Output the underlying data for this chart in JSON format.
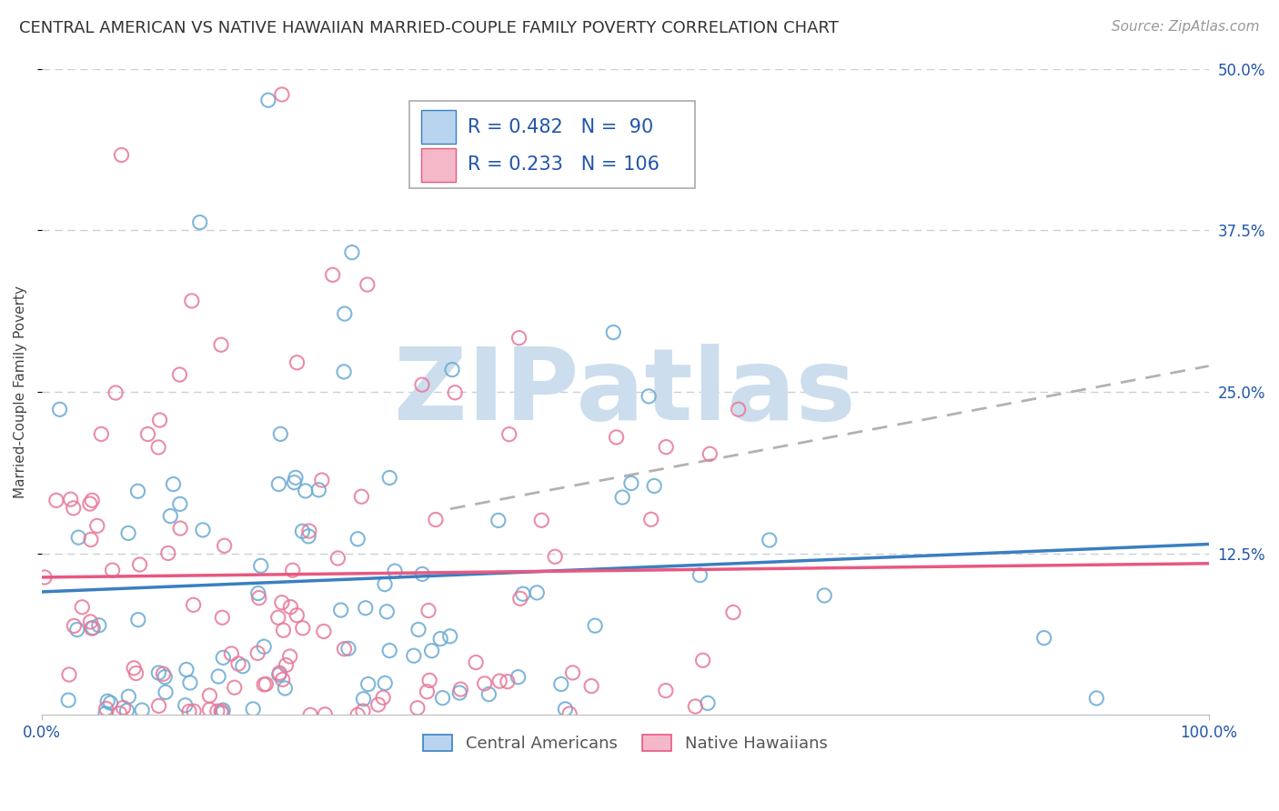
{
  "title": "CENTRAL AMERICAN VS NATIVE HAWAIIAN MARRIED-COUPLE FAMILY POVERTY CORRELATION CHART",
  "source": "Source: ZipAtlas.com",
  "ylabel": "Married-Couple Family Poverty",
  "xmin": 0.0,
  "xmax": 1.0,
  "ymin": 0.0,
  "ymax": 0.5,
  "yticks": [
    0.125,
    0.25,
    0.375,
    0.5
  ],
  "ytick_labels": [
    "12.5%",
    "25.0%",
    "37.5%",
    "50.0%"
  ],
  "xticks": [
    0.0,
    1.0
  ],
  "xtick_labels": [
    "0.0%",
    "100.0%"
  ],
  "series": [
    {
      "name": "Central Americans",
      "R": 0.482,
      "N": 90,
      "patch_color": "#b8d4ee",
      "dot_color": "#6aaad4",
      "line_color": "#3a7fc1",
      "seed": 42
    },
    {
      "name": "Native Hawaiians",
      "R": 0.233,
      "N": 106,
      "patch_color": "#f5b8c8",
      "dot_color": "#e87898",
      "line_color": "#e85880",
      "seed": 17
    }
  ],
  "legend_text_color": "#2255aa",
  "watermark": "ZIPatlas",
  "watermark_color": "#ccdded",
  "background_color": "#ffffff",
  "grid_color": "#c8d0dc",
  "title_fontsize": 13,
  "axis_label_fontsize": 11,
  "tick_fontsize": 12,
  "legend_fontsize": 15,
  "source_fontsize": 11
}
